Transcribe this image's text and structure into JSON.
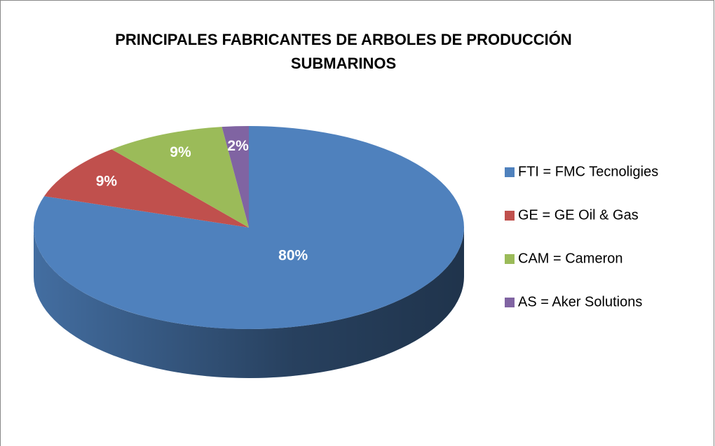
{
  "chart_data": {
    "type": "pie",
    "title": "PRINCIPALES FABRICANTES DE ARBOLES DE PRODUCCIÓN SUBMARINOS",
    "categories": [
      "FTI = FMC Tecnoligies",
      "GE = GE Oil & Gas",
      "CAM = Cameron",
      "AS = Aker Solutions"
    ],
    "values": [
      80,
      9,
      9,
      2
    ],
    "value_labels": [
      "80%",
      "9%",
      "9%",
      "2%"
    ],
    "colors": [
      "#4f81bd",
      "#c0504d",
      "#9bbb59",
      "#8064a2"
    ],
    "legend": "right"
  }
}
